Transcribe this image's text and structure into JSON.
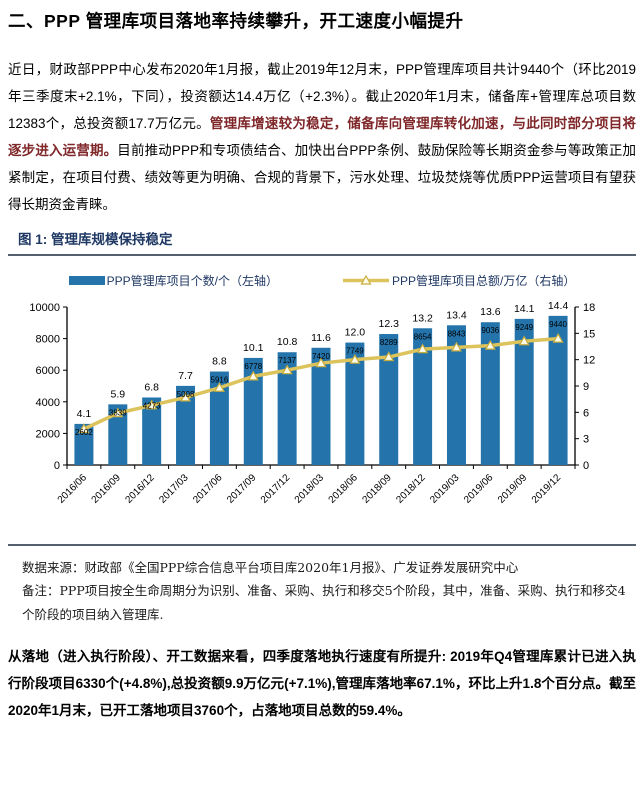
{
  "page": {
    "title": "二、PPP 管理库项目落地率持续攀升，开工速度小幅提升"
  },
  "paragraph1": {
    "part1": "近日，财政部PPP中心发布2020年1月报，截止2019年12月末，PPP管理库项目共计9440个（环比2019年三季度末+2.1%，下同），投资额达14.4万亿（+2.3%）。截止2020年1月末，储备库+管理库总项目数12383个，总投资额17.7万亿元。",
    "emphasis": "管理库增速较为稳定，储备库向管理库转化加速，与此同时部分项目将逐步进入运营期。",
    "part2": "目前推动PPP和专项债结合、加快出台PPP条例、鼓励保险等长期资金参与等政策正加紧制定，在项目付费、绩效等更为明确、合规的背景下，污水处理、垃圾焚烧等优质PPP运营项目有望获得长期资金青睐。"
  },
  "figure": {
    "caption": "图 1: 管理库规模保持稳定",
    "legend": [
      {
        "label": "PPP管理库项目个数/个（左轴）",
        "type": "bar",
        "color": "#2474AB"
      },
      {
        "label": "PPP管理库项目总额/万亿（右轴）",
        "type": "line",
        "color": "#DCC35B"
      }
    ],
    "source_line1": "数据来源：财政部《全国PPP综合信息平台项目库2020年1月报》、广发证券发展研究中心",
    "source_line2": "备注：PPP项目按全生命周期分为识别、准备、采购、执行和移交5个阶段，其中，准备、采购、执行和移交4个阶段的项目纳入管理库."
  },
  "chart_data": {
    "type": "bar",
    "title": "管理库规模保持稳定",
    "categories": [
      "2016/06",
      "2016/09",
      "2016/12",
      "2017/03",
      "2017/06",
      "2017/09",
      "2017/12",
      "2018/03",
      "2018/06",
      "2018/09",
      "2018/12",
      "2019/03",
      "2019/06",
      "2019/09",
      "2019/12"
    ],
    "series": [
      {
        "name": "PPP管理库项目个数/个（左轴）",
        "type": "bar",
        "axis": "left",
        "color": "#2474AB",
        "values": [
          2602,
          3839,
          4273,
          5008,
          5916,
          6778,
          7137,
          7420,
          7749,
          8289,
          8654,
          8843,
          9036,
          9249,
          9440
        ]
      },
      {
        "name": "PPP管理库项目总额/万亿（右轴）",
        "type": "line",
        "axis": "right",
        "color": "#DCC35B",
        "marker_fill": "#FDFBEA",
        "marker_stroke": "#C8AC3C",
        "values": [
          4.1,
          5.9,
          6.8,
          7.7,
          8.8,
          10.1,
          10.8,
          11.6,
          12.0,
          12.3,
          13.2,
          13.4,
          13.6,
          14.1,
          14.4
        ]
      }
    ],
    "left_axis": {
      "min": 0,
      "max": 10000,
      "ticks": [
        0,
        2000,
        4000,
        6000,
        8000,
        10000
      ]
    },
    "right_axis": {
      "min": 0,
      "max": 18,
      "ticks": [
        0,
        3,
        6,
        9,
        12,
        15,
        18
      ]
    },
    "grid": false,
    "legend_position": "top",
    "xlabel": "",
    "ylabel": ""
  },
  "paragraph2": {
    "text": "从落地（进入执行阶段）、开工数据来看，四季度落地执行速度有所提升: 2019年Q4管理库累计已进入执行阶段项目6330个(+4.8%),总投资额9.9万亿元(+7.1%),管理库落地率67.1%，环比上升1.8个百分点。截至2020年1月末，已开工落地项目3760个，占落地项目总数的59.4%。"
  }
}
